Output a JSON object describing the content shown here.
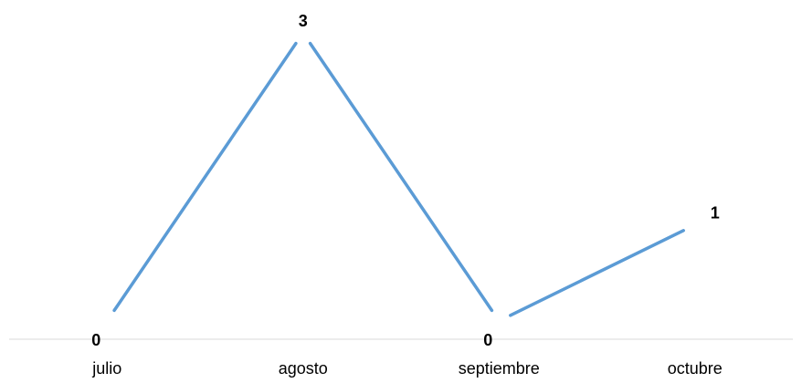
{
  "chart_data": {
    "type": "line",
    "categories": [
      "julio",
      "agosto",
      "septiembre",
      "octubre"
    ],
    "values": [
      0,
      3,
      0,
      1
    ],
    "ylim": [
      0,
      3
    ],
    "grid": false,
    "legend": "none",
    "colors": {
      "line": "#5b9bd5",
      "axis": "#d9d9d9",
      "text": "#000000"
    }
  }
}
